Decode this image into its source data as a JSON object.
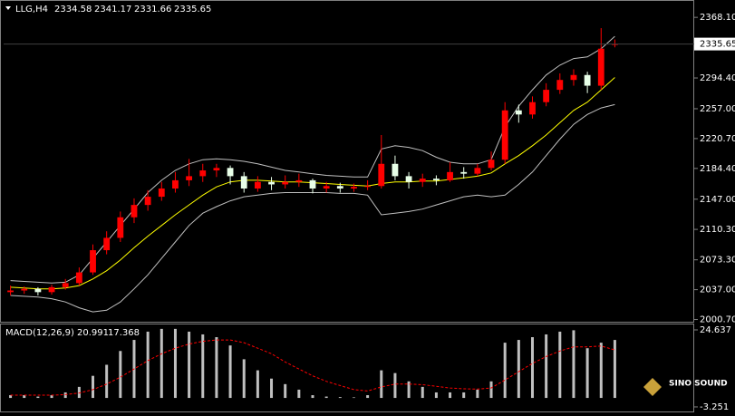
{
  "chart_data": [
    {
      "type": "candlestick",
      "title": "LLG,H4",
      "ohlc_header": [
        2334.58,
        2341.17,
        2331.66,
        2335.65
      ],
      "open": [
        2034,
        2036,
        2038,
        2034,
        2040,
        2045,
        2058,
        2085,
        2100,
        2125,
        2140,
        2150,
        2160,
        2170,
        2175,
        2182,
        2185,
        2175,
        2160,
        2168,
        2165,
        2168,
        2170,
        2160,
        2163,
        2160,
        2162,
        2163,
        2190,
        2175,
        2168,
        2172,
        2170,
        2180,
        2178,
        2185,
        2195,
        2255,
        2250,
        2265,
        2280,
        2292,
        2298,
        2285,
        2334.58
      ],
      "high": [
        2042,
        2041,
        2040,
        2043,
        2050,
        2064,
        2092,
        2108,
        2132,
        2148,
        2158,
        2168,
        2180,
        2196,
        2190,
        2190,
        2188,
        2180,
        2175,
        2174,
        2176,
        2178,
        2172,
        2168,
        2167,
        2166,
        2170,
        2225,
        2200,
        2180,
        2178,
        2176,
        2192,
        2186,
        2190,
        2205,
        2265,
        2262,
        2272,
        2288,
        2300,
        2305,
        2302,
        2355,
        2341.17
      ],
      "low": [
        2030,
        2032,
        2030,
        2031,
        2037,
        2042,
        2055,
        2080,
        2095,
        2118,
        2133,
        2145,
        2155,
        2163,
        2168,
        2174,
        2165,
        2155,
        2156,
        2158,
        2160,
        2162,
        2154,
        2155,
        2155,
        2156,
        2158,
        2160,
        2170,
        2160,
        2162,
        2164,
        2168,
        2172,
        2175,
        2182,
        2190,
        2240,
        2245,
        2260,
        2275,
        2285,
        2276,
        2280,
        2331.66
      ],
      "close": [
        2036,
        2038,
        2034,
        2040,
        2045,
        2058,
        2085,
        2100,
        2125,
        2140,
        2150,
        2160,
        2170,
        2175,
        2182,
        2185,
        2175,
        2160,
        2168,
        2165,
        2168,
        2170,
        2160,
        2163,
        2160,
        2162,
        2163,
        2190,
        2175,
        2168,
        2172,
        2170,
        2180,
        2178,
        2185,
        2195,
        2255,
        2250,
        2265,
        2280,
        2292,
        2298,
        2285,
        2330,
        2335.65
      ],
      "ma": [
        2040,
        2039,
        2038,
        2038,
        2039,
        2042,
        2050,
        2060,
        2073,
        2088,
        2102,
        2115,
        2128,
        2140,
        2152,
        2162,
        2168,
        2170,
        2170,
        2169,
        2168,
        2168,
        2167,
        2166,
        2165,
        2164,
        2163,
        2166,
        2168,
        2168,
        2169,
        2169,
        2171,
        2173,
        2175,
        2179,
        2190,
        2200,
        2212,
        2225,
        2240,
        2255,
        2265,
        2280,
        2295
      ],
      "upper_band": [
        2048,
        2047,
        2046,
        2045,
        2046,
        2055,
        2075,
        2095,
        2115,
        2135,
        2155,
        2170,
        2182,
        2190,
        2195,
        2196,
        2195,
        2193,
        2190,
        2186,
        2182,
        2180,
        2178,
        2176,
        2175,
        2174,
        2174,
        2208,
        2212,
        2210,
        2206,
        2198,
        2192,
        2190,
        2190,
        2195,
        2235,
        2260,
        2280,
        2298,
        2310,
        2318,
        2320,
        2330,
        2345
      ],
      "lower_band": [
        2030,
        2029,
        2028,
        2026,
        2022,
        2015,
        2010,
        2012,
        2022,
        2038,
        2055,
        2075,
        2095,
        2115,
        2130,
        2138,
        2145,
        2150,
        2152,
        2154,
        2155,
        2155,
        2155,
        2155,
        2154,
        2154,
        2152,
        2128,
        2130,
        2132,
        2135,
        2140,
        2145,
        2150,
        2152,
        2150,
        2152,
        2165,
        2180,
        2200,
        2220,
        2238,
        2250,
        2258,
        2262
      ],
      "up_color": "#ff0000",
      "down_color": "#e8ffe8",
      "ma_color": "#ffff00",
      "band_color": "#c0c0c0",
      "ylim": [
        1998,
        2387
      ],
      "yticks": [
        {
          "value": 2368.1,
          "label": "2368.10"
        },
        {
          "value": 2294.4,
          "label": "2294.40"
        },
        {
          "value": 2257,
          "label": "2257.00"
        },
        {
          "value": 2220.7,
          "label": "2220.70"
        },
        {
          "value": 2184.4,
          "label": "2184.40"
        },
        {
          "value": 2147,
          "label": "2147.00"
        },
        {
          "value": 2110.3,
          "label": "2110.30"
        },
        {
          "value": 2073.3,
          "label": "2073.30"
        },
        {
          "value": 2037,
          "label": "2037.00"
        },
        {
          "value": 2000.7,
          "label": "2000.70"
        }
      ],
      "current_price": 2335.65
    },
    {
      "type": "macd",
      "title": "MACD(12,26,9)",
      "readout": [
        20.991,
        17.368
      ],
      "values": [
        1,
        1,
        0.5,
        1,
        2,
        4,
        8,
        12,
        17,
        21,
        24,
        25,
        25,
        24,
        23,
        22,
        19,
        14,
        10,
        7,
        5,
        3,
        1,
        0.5,
        0.3,
        0.2,
        1,
        10,
        9,
        6,
        4,
        2,
        2,
        2,
        3,
        6,
        20,
        21,
        22,
        23,
        24,
        24.5,
        18,
        20,
        20.991
      ],
      "signal": [
        1,
        1,
        1,
        1,
        1.2,
        1.8,
        3,
        5,
        7.5,
        10.5,
        13.5,
        16,
        18,
        19.5,
        20.5,
        21,
        21,
        20,
        18,
        16,
        13,
        10.5,
        8,
        6,
        4.5,
        3,
        2.5,
        4,
        5,
        5,
        4.8,
        4.2,
        3.6,
        3.3,
        3.2,
        3.6,
        6.5,
        9.5,
        12.5,
        15,
        17,
        18.5,
        18.5,
        18.8,
        17.368
      ],
      "color": "#c0c0c0",
      "signal_color": "#ff0000",
      "ylim": [
        -4.9,
        26.6
      ],
      "yticks": [
        24.637,
        -3.251
      ]
    }
  ],
  "watermark": "SINO SOUND"
}
